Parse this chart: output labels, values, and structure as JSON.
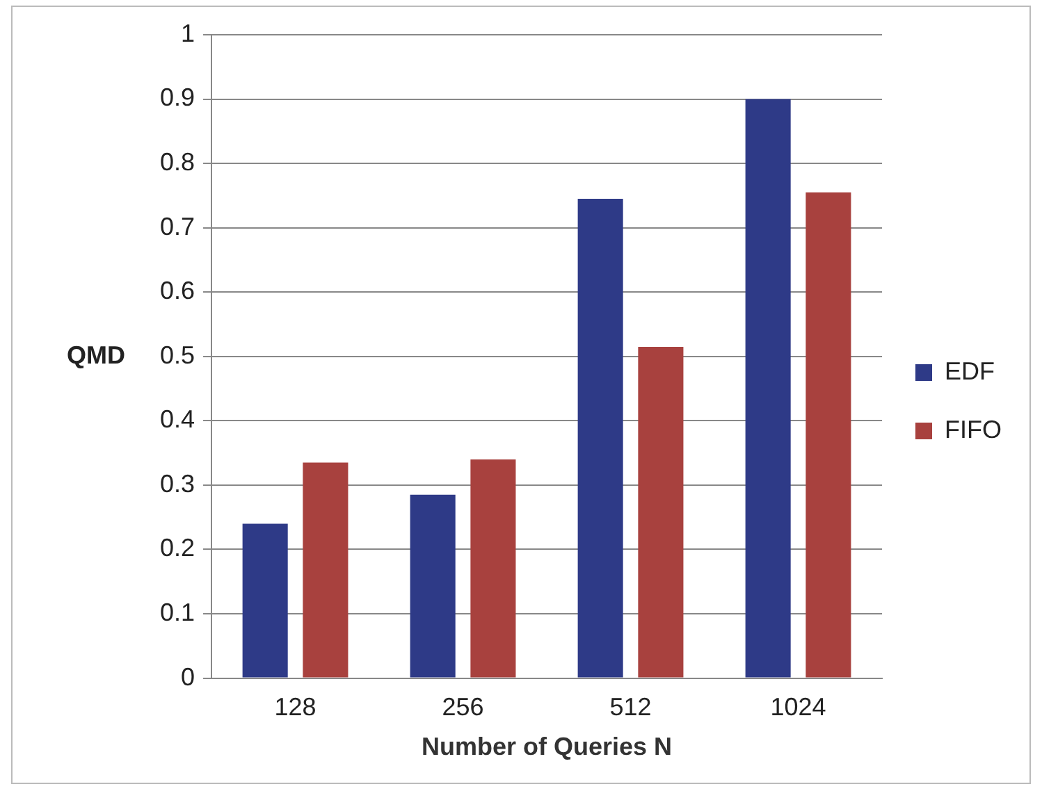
{
  "chart_data": {
    "type": "bar",
    "xlabel": "Number of Queries N",
    "ylabel": "QMD",
    "categories": [
      "128",
      "256",
      "512",
      "1024"
    ],
    "series": [
      {
        "name": "EDF",
        "color": "#2e3a87",
        "values": [
          0.24,
          0.285,
          0.745,
          0.9
        ]
      },
      {
        "name": "FIFO",
        "color": "#a8413e",
        "values": [
          0.335,
          0.34,
          0.515,
          0.755
        ]
      }
    ],
    "ylim": [
      0,
      1
    ],
    "yticks": [
      0,
      0.1,
      0.2,
      0.3,
      0.4,
      0.5,
      0.6,
      0.7,
      0.8,
      0.9,
      1
    ],
    "grid": "y",
    "legend": "right"
  }
}
